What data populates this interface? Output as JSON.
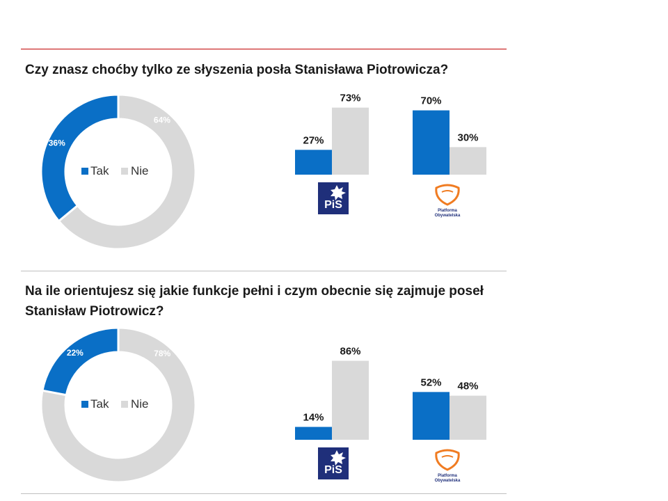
{
  "colors": {
    "tak": "#0a6fc6",
    "nie": "#d9d9d9",
    "pis_bg": "#1f2f7a",
    "po_orange": "#f07c22",
    "rule": "#c00000"
  },
  "sections": [
    {
      "question": "Czy znasz choćby tylko ze słyszenia posła Stanisława Piotrowicza?",
      "legend": [
        "Tak",
        "Nie"
      ],
      "logos": {
        "pis_text": "PiS",
        "po_text": [
          "Platforma",
          "Obywatelska"
        ]
      },
      "chart_data": [
        {
          "type": "pie",
          "categories": [
            "Tak",
            "Nie"
          ],
          "values": [
            36,
            64
          ],
          "labels": [
            "36%",
            "64%"
          ]
        },
        {
          "type": "bar",
          "categories": [
            "PiS",
            "PO"
          ],
          "series": [
            {
              "name": "Tak",
              "values": [
                27,
                70
              ],
              "labels": [
                "27%",
                "70%"
              ]
            },
            {
              "name": "Nie",
              "values": [
                73,
                30
              ],
              "labels": [
                "73%",
                "30%"
              ]
            }
          ]
        }
      ]
    },
    {
      "question": "Na ile orientujesz się jakie funkcje pełni i czym obecnie się zajmuje poseł Stanisław Piotrowicz?",
      "legend": [
        "Tak",
        "Nie"
      ],
      "logos": {
        "pis_text": "PiS",
        "po_text": [
          "Platforma",
          "Obywatelska"
        ]
      },
      "chart_data": [
        {
          "type": "pie",
          "categories": [
            "Tak",
            "Nie"
          ],
          "values": [
            22,
            78
          ],
          "labels": [
            "22%",
            "78%"
          ]
        },
        {
          "type": "bar",
          "categories": [
            "PiS",
            "PO"
          ],
          "series": [
            {
              "name": "Tak",
              "values": [
                14,
                52
              ],
              "labels": [
                "14%",
                "52%"
              ]
            },
            {
              "name": "Nie",
              "values": [
                86,
                48
              ],
              "labels": [
                "86%",
                "48%"
              ]
            }
          ]
        }
      ]
    }
  ]
}
